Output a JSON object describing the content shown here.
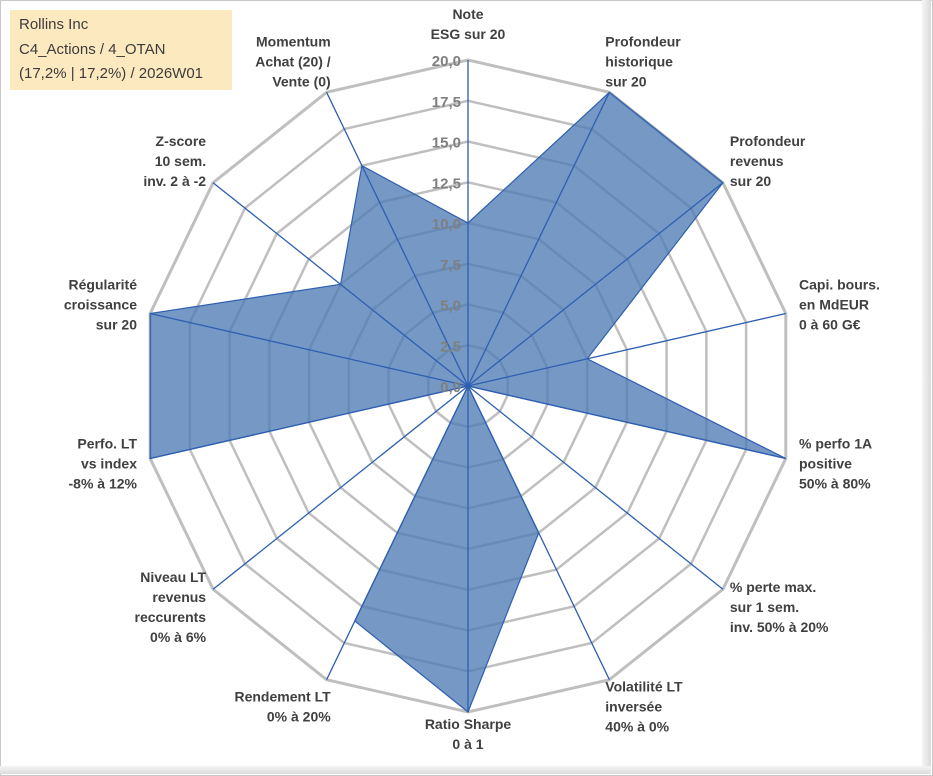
{
  "title_box": {
    "company": "Rollins Inc",
    "portfolio": "C4_Actions / 4_OTAN",
    "weights_week": "(17,2% | 17,2%) / 2026W01"
  },
  "chart_data": {
    "type": "radar",
    "title": "Rollins Inc",
    "rmin": 0,
    "rmax": 20,
    "ticks": [
      0,
      2.5,
      5,
      7.5,
      10,
      12.5,
      15,
      17.5,
      20
    ],
    "tick_labels": [
      "0,0",
      "2,5",
      "5,0",
      "7,5",
      "10,0",
      "12,5",
      "15,0",
      "17,5",
      "20,0"
    ],
    "axes": [
      [
        "Note",
        "ESG sur 20"
      ],
      [
        "Profondeur",
        "historique",
        "sur 20"
      ],
      [
        "Profondeur",
        "revenus",
        "sur 20"
      ],
      [
        "Capi. bours.",
        "en MdEUR",
        "0 à 60 G€"
      ],
      [
        "% perfo 1A",
        "positive",
        "50% à 80%"
      ],
      [
        "% perte max.",
        "sur 1 sem.",
        "inv. 50% à 20%"
      ],
      [
        "Volatilité LT",
        "inversée",
        "40% à 0%"
      ],
      [
        "Ratio Sharpe",
        "0 à 1"
      ],
      [
        "Rendement LT",
        "0% à 20%"
      ],
      [
        "Niveau LT",
        "revenus",
        "reccurents",
        "0% à 6%"
      ],
      [
        "Perfo. LT",
        "vs index",
        "-8% à 12%"
      ],
      [
        "Régularité",
        "croissance",
        "sur 20"
      ],
      [
        "Z-score",
        "10 sem.",
        "inv. 2 à -2"
      ],
      [
        "Momentum",
        "Achat (20) /",
        "Vente (0)"
      ]
    ],
    "series": [
      {
        "name": "Rollins Inc",
        "color": "#4f7bb5",
        "values": [
          10,
          20,
          20,
          7.5,
          20,
          0,
          10,
          20,
          16,
          0,
          20,
          20,
          10,
          15
        ]
      }
    ],
    "grid_color": "#bfbfbf",
    "spoke_color": "#2e5fb0"
  }
}
